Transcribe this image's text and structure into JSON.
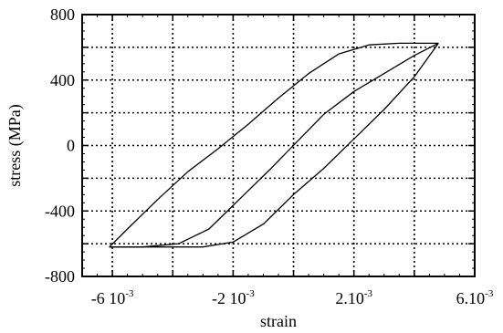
{
  "chart_data": {
    "type": "line",
    "title": "",
    "xlabel": "strain",
    "ylabel": "stress (MPa)",
    "xlim": [
      -0.007,
      0.006
    ],
    "ylim": [
      -800,
      800
    ],
    "grid": true,
    "x_ticks": [
      {
        "value": -0.006,
        "mantissa": "-6 10",
        "exp": "-3"
      },
      {
        "value": -0.002,
        "mantissa": "-2 10",
        "exp": "-3"
      },
      {
        "value": 0.002,
        "mantissa": "2.10",
        "exp": "-3"
      },
      {
        "value": 0.006,
        "mantissa": "6.10",
        "exp": "-3"
      }
    ],
    "y_ticks": [
      {
        "value": 800,
        "label": "800"
      },
      {
        "value": 400,
        "label": "400"
      },
      {
        "value": 0,
        "label": "0"
      },
      {
        "value": -400,
        "label": "-400"
      },
      {
        "value": -800,
        "label": "-800"
      }
    ],
    "series": [
      {
        "points": [
          [
            -0.0061,
            -620
          ],
          [
            -0.0055,
            -510
          ],
          [
            -0.0045,
            -330
          ],
          [
            -0.0035,
            -160
          ],
          [
            -0.0025,
            -20
          ],
          [
            -0.0015,
            130
          ],
          [
            -0.0005,
            290
          ],
          [
            0.0005,
            440
          ],
          [
            0.0015,
            560
          ],
          [
            0.0025,
            615
          ],
          [
            0.0035,
            625
          ],
          [
            0.0048,
            625
          ]
        ]
      },
      {
        "points": [
          [
            0.0048,
            625
          ],
          [
            0.004,
            550
          ],
          [
            0.003,
            440
          ],
          [
            0.002,
            330
          ],
          [
            0.001,
            190
          ],
          [
            0.0001,
            20
          ],
          [
            -0.0008,
            -150
          ],
          [
            -0.0018,
            -330
          ],
          [
            -0.0028,
            -510
          ],
          [
            -0.0038,
            -600
          ],
          [
            -0.005,
            -620
          ],
          [
            -0.0061,
            -620
          ]
        ]
      },
      {
        "points": [
          [
            -0.0061,
            -620
          ],
          [
            -0.003,
            -620
          ],
          [
            -0.002,
            -590
          ],
          [
            -0.001,
            -480
          ],
          [
            0.0,
            -300
          ],
          [
            0.001,
            -140
          ],
          [
            0.002,
            40
          ],
          [
            0.003,
            220
          ],
          [
            0.004,
            420
          ],
          [
            0.0048,
            625
          ]
        ]
      }
    ]
  }
}
